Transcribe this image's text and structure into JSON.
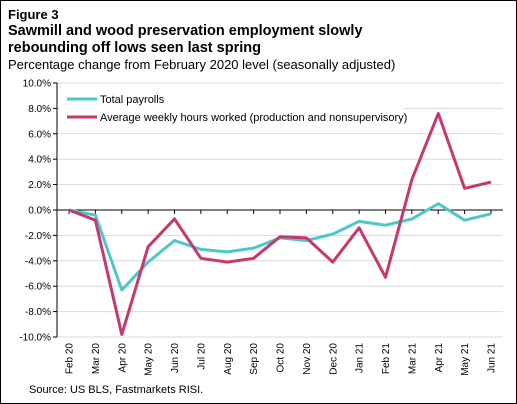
{
  "figure_label": "Figure 3",
  "title_line1": "Sawmill and wood preservation employment slowly",
  "title_line2": "rebounding off lows seen last spring",
  "subtitle": "Percentage change from February 2020 level (seasonally adjusted)",
  "source": "Source: US BLS, Fastmarkets RISI.",
  "chart_data": {
    "type": "line",
    "categories": [
      "Feb 20",
      "Mar 20",
      "Apr 20",
      "May 20",
      "Jun 20",
      "Jul 20",
      "Aug 20",
      "Sep 20",
      "Oct 20",
      "Nov 20",
      "Dec 20",
      "Jan 21",
      "Feb 21",
      "Mar 21",
      "Apr 21",
      "May 21",
      "Jun 21"
    ],
    "series": [
      {
        "name": "Total payrolls",
        "color": "#4dc8c8",
        "values": [
          0.0,
          -0.4,
          -6.3,
          -4.1,
          -2.4,
          -3.1,
          -3.3,
          -3.0,
          -2.2,
          -2.4,
          -1.9,
          -0.9,
          -1.2,
          -0.7,
          0.5,
          -0.8,
          -0.3
        ]
      },
      {
        "name": "Average weekly hours worked (production and nonsupervisory)",
        "color": "#c8386e",
        "values": [
          0.0,
          -0.8,
          -9.8,
          -2.9,
          -0.7,
          -3.8,
          -4.1,
          -3.8,
          -2.1,
          -2.2,
          -4.1,
          -1.4,
          -5.3,
          2.4,
          7.6,
          1.7,
          2.2
        ]
      }
    ],
    "yticks": [
      "10.0%",
      "8.0%",
      "6.0%",
      "4.0%",
      "2.0%",
      "0.0%",
      "-2.0%",
      "-4.0%",
      "-6.0%",
      "-8.0%",
      "-10.0%"
    ],
    "ylim": [
      -10,
      10
    ],
    "grid": true,
    "legend_position": "top-left"
  }
}
